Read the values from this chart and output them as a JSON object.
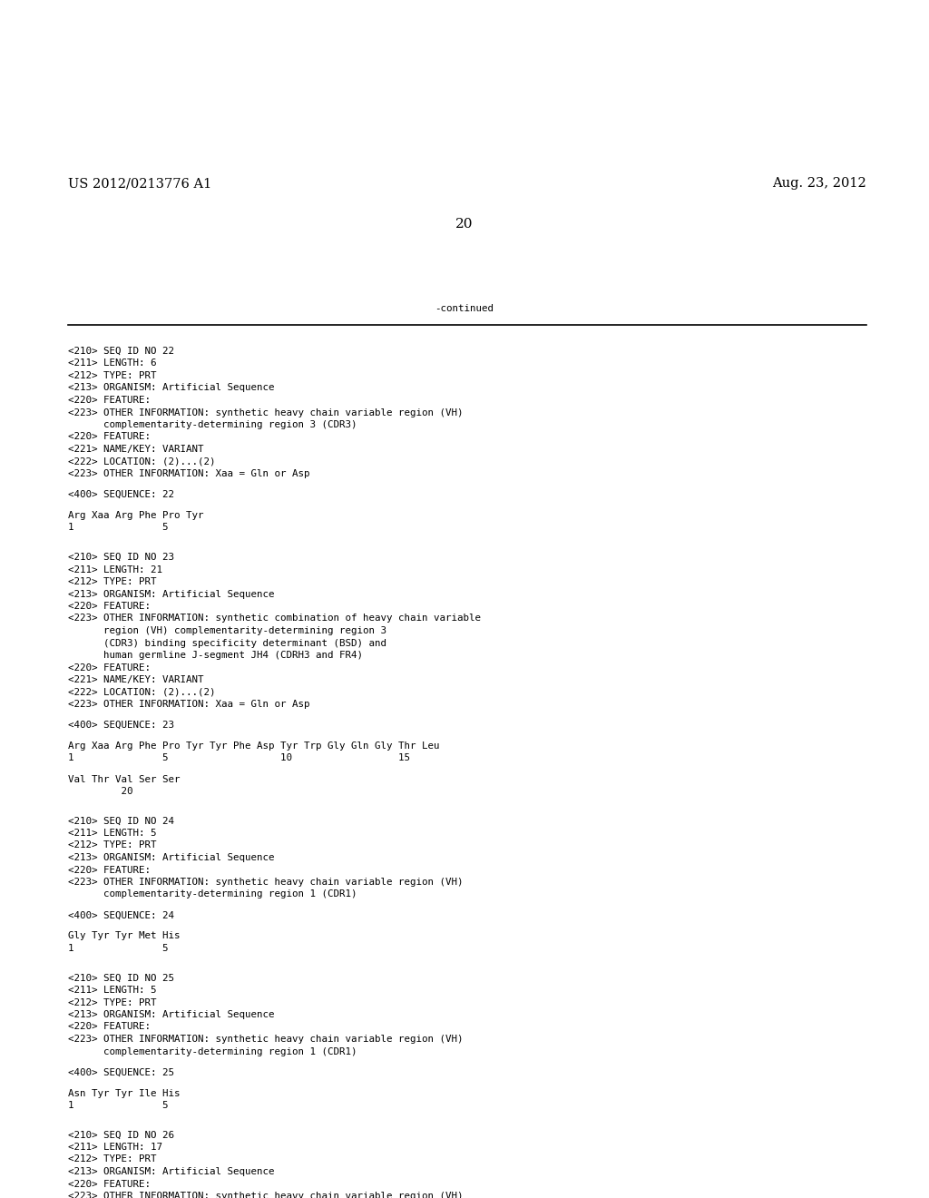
{
  "patent_number": "US 2012/0213776 A1",
  "date": "Aug. 23, 2012",
  "page_number": "20",
  "continued_label": "-continued",
  "background_color": "#ffffff",
  "text_color": "#000000",
  "font_size_header": 10.5,
  "font_size_body": 7.8,
  "font_size_page": 11,
  "content": [
    "<210> SEQ ID NO 22",
    "<211> LENGTH: 6",
    "<212> TYPE: PRT",
    "<213> ORGANISM: Artificial Sequence",
    "<220> FEATURE:",
    "<223> OTHER INFORMATION: synthetic heavy chain variable region (VH)",
    "      complementarity-determining region 3 (CDR3)",
    "<220> FEATURE:",
    "<221> NAME/KEY: VARIANT",
    "<222> LOCATION: (2)...(2)",
    "<223> OTHER INFORMATION: Xaa = Gln or Asp",
    "",
    "<400> SEQUENCE: 22",
    "",
    "Arg Xaa Arg Phe Pro Tyr",
    "1               5",
    "",
    "",
    "<210> SEQ ID NO 23",
    "<211> LENGTH: 21",
    "<212> TYPE: PRT",
    "<213> ORGANISM: Artificial Sequence",
    "<220> FEATURE:",
    "<223> OTHER INFORMATION: synthetic combination of heavy chain variable",
    "      region (VH) complementarity-determining region 3",
    "      (CDR3) binding specificity determinant (BSD) and",
    "      human germline J-segment JH4 (CDRH3 and FR4)",
    "<220> FEATURE:",
    "<221> NAME/KEY: VARIANT",
    "<222> LOCATION: (2)...(2)",
    "<223> OTHER INFORMATION: Xaa = Gln or Asp",
    "",
    "<400> SEQUENCE: 23",
    "",
    "Arg Xaa Arg Phe Pro Tyr Tyr Phe Asp Tyr Trp Gly Gln Gly Thr Leu",
    "1               5                   10                  15",
    "",
    "Val Thr Val Ser Ser",
    "         20",
    "",
    "",
    "<210> SEQ ID NO 24",
    "<211> LENGTH: 5",
    "<212> TYPE: PRT",
    "<213> ORGANISM: Artificial Sequence",
    "<220> FEATURE:",
    "<223> OTHER INFORMATION: synthetic heavy chain variable region (VH)",
    "      complementarity-determining region 1 (CDR1)",
    "",
    "<400> SEQUENCE: 24",
    "",
    "Gly Tyr Tyr Met His",
    "1               5",
    "",
    "",
    "<210> SEQ ID NO 25",
    "<211> LENGTH: 5",
    "<212> TYPE: PRT",
    "<213> ORGANISM: Artificial Sequence",
    "<220> FEATURE:",
    "<223> OTHER INFORMATION: synthetic heavy chain variable region (VH)",
    "      complementarity-determining region 1 (CDR1)",
    "",
    "<400> SEQUENCE: 25",
    "",
    "Asn Tyr Tyr Ile His",
    "1               5",
    "",
    "",
    "<210> SEQ ID NO 26",
    "<211> LENGTH: 17",
    "<212> TYPE: PRT",
    "<213> ORGANISM: Artificial Sequence",
    "<220> FEATURE:",
    "<223> OTHER INFORMATION: synthetic heavy chain variable region (VH)"
  ]
}
